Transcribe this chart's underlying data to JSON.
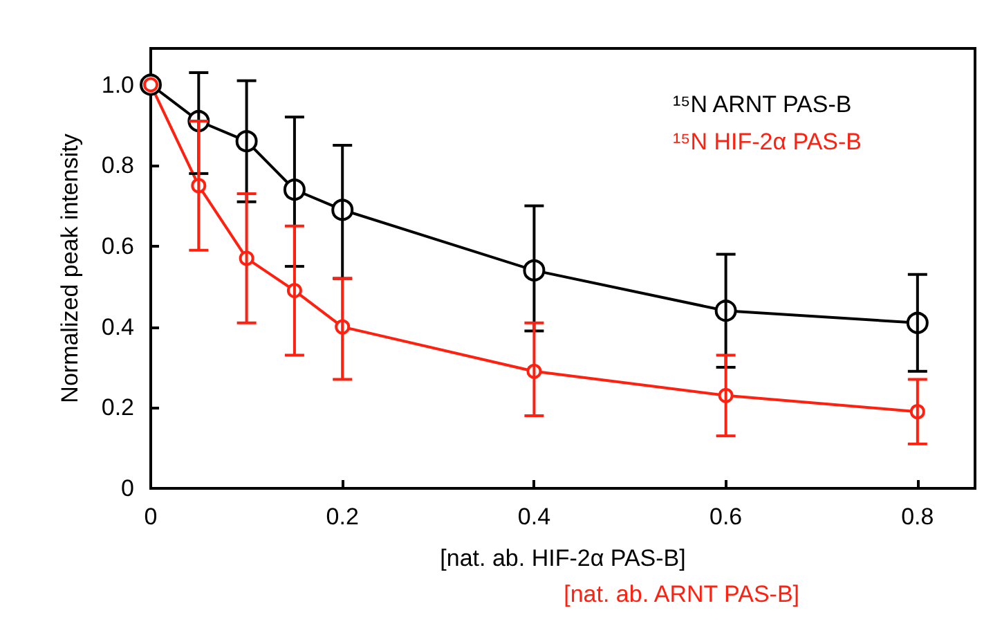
{
  "chart_data": {
    "type": "line",
    "xlabel": "[nat. ab. HIF-2α PAS-B]",
    "ylabel": "Normalized peak intensity",
    "annotations": [
      "[nat. ab. ARNT PAS-B]"
    ],
    "x": [
      0,
      0.05,
      0.1,
      0.15,
      0.2,
      0.4,
      0.6,
      0.8
    ],
    "series": [
      {
        "name": "¹⁵N ARNT PAS-B",
        "color": "#000000",
        "values": [
          1.0,
          0.91,
          0.86,
          0.74,
          0.69,
          0.54,
          0.44,
          0.41
        ],
        "errors": [
          null,
          [
            0.78,
            1.03
          ],
          [
            0.71,
            1.01
          ],
          [
            0.55,
            0.92
          ],
          [
            0.52,
            0.85
          ],
          [
            0.39,
            0.7
          ],
          [
            0.3,
            0.58
          ],
          [
            0.29,
            0.53
          ]
        ]
      },
      {
        "name": "¹⁵N HIF-2α PAS-B",
        "color": "#ff2010",
        "values": [
          1.0,
          0.75,
          0.57,
          0.49,
          0.4,
          0.29,
          0.23,
          0.19
        ],
        "errors": [
          null,
          [
            0.59,
            0.91
          ],
          [
            0.41,
            0.73
          ],
          [
            0.33,
            0.65
          ],
          [
            0.27,
            0.52
          ],
          [
            0.18,
            0.41
          ],
          [
            0.13,
            0.33
          ],
          [
            0.11,
            0.27
          ]
        ]
      }
    ],
    "xlim": [
      0,
      0.86
    ],
    "xticks": [
      0,
      0.2,
      0.4,
      0.6,
      0.8
    ],
    "ylim": [
      0,
      1.09
    ],
    "yticks": [
      0,
      0.2,
      0.4,
      0.6,
      0.8,
      {
        "value": 1,
        "label": "1.0"
      }
    ],
    "grid": false,
    "legend": "top right",
    "marker": "circle",
    "line_style": "solid"
  }
}
